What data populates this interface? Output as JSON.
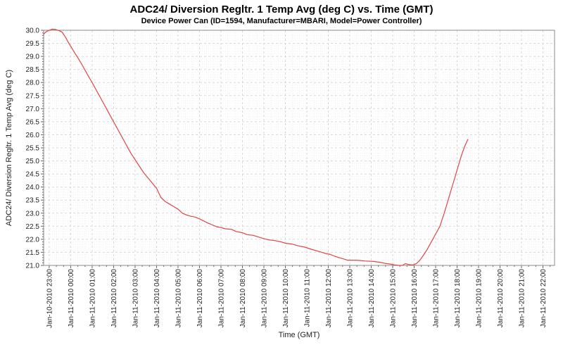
{
  "chart_data": {
    "type": "line",
    "title": "ADC24/ Diversion Regltr. 1 Temp Avg (deg C) vs. Time (GMT)",
    "subtitle": "Device Power Can (ID=1594, Manufacturer=MBARI, Model=Power Controller)",
    "xlabel": "Time (GMT)",
    "ylabel": "ADC24/ Diversion Regltr. 1 Temp Avg (deg C)",
    "legend_position": "none",
    "grid": {
      "major": true,
      "minor": true,
      "style": "dashed"
    },
    "ylim": [
      21.0,
      30.0
    ],
    "y_tick_step": 0.5,
    "xlim_hours": [
      -0.26,
      23.54
    ],
    "x_tick_labels": [
      "Jan-10-2010 23:00",
      "Jan-11-2010 00:00",
      "Jan-11-2010 01:00",
      "Jan-11-2010 02:00",
      "Jan-11-2010 03:00",
      "Jan-11-2010 04:00",
      "Jan-11-2010 05:00",
      "Jan-11-2010 06:00",
      "Jan-11-2010 07:00",
      "Jan-11-2010 08:00",
      "Jan-11-2010 09:00",
      "Jan-11-2010 10:00",
      "Jan-11-2010 11:00",
      "Jan-11-2010 12:00",
      "Jan-11-2010 13:00",
      "Jan-11-2010 14:00",
      "Jan-11-2010 15:00",
      "Jan-11-2010 16:00",
      "Jan-11-2010 17:00",
      "Jan-11-2010 18:00",
      "Jan-11-2010 19:00",
      "Jan-11-2010 20:00",
      "Jan-11-2010 21:00",
      "Jan-11-2010 22:00"
    ],
    "colors": {
      "line": "#e04545",
      "grid_major": "#d8d8d8",
      "grid_minor": "#efefef",
      "border": "#888888",
      "tick": "#666666",
      "tick_text": "#222222"
    },
    "series": [
      {
        "name": "ADC24/ Diversion Regltr. 1 Temp Avg (deg C)",
        "x_unit": "hours after Jan-10-2010 23:00 GMT",
        "points": [
          [
            -0.26,
            29.85
          ],
          [
            -0.15,
            29.94
          ],
          [
            0.0,
            30.0
          ],
          [
            0.15,
            30.04
          ],
          [
            0.3,
            30.03
          ],
          [
            0.45,
            29.99
          ],
          [
            0.6,
            29.93
          ],
          [
            0.75,
            29.75
          ],
          [
            0.9,
            29.52
          ],
          [
            1.05,
            29.32
          ],
          [
            1.2,
            29.12
          ],
          [
            1.35,
            28.93
          ],
          [
            1.5,
            28.72
          ],
          [
            1.65,
            28.5
          ],
          [
            1.8,
            28.28
          ],
          [
            2.0,
            28.0
          ],
          [
            2.2,
            27.7
          ],
          [
            2.4,
            27.4
          ],
          [
            2.6,
            27.1
          ],
          [
            2.8,
            26.8
          ],
          [
            3.0,
            26.5
          ],
          [
            3.2,
            26.2
          ],
          [
            3.4,
            25.9
          ],
          [
            3.6,
            25.6
          ],
          [
            3.8,
            25.3
          ],
          [
            4.0,
            25.05
          ],
          [
            4.2,
            24.8
          ],
          [
            4.4,
            24.55
          ],
          [
            4.6,
            24.35
          ],
          [
            4.8,
            24.15
          ],
          [
            5.0,
            23.95
          ],
          [
            5.2,
            23.6
          ],
          [
            5.4,
            23.45
          ],
          [
            5.6,
            23.35
          ],
          [
            5.8,
            23.25
          ],
          [
            6.0,
            23.15
          ],
          [
            6.2,
            23.0
          ],
          [
            6.4,
            22.93
          ],
          [
            6.6,
            22.88
          ],
          [
            6.8,
            22.85
          ],
          [
            7.0,
            22.78
          ],
          [
            7.2,
            22.7
          ],
          [
            7.4,
            22.62
          ],
          [
            7.6,
            22.55
          ],
          [
            7.8,
            22.48
          ],
          [
            8.0,
            22.45
          ],
          [
            8.2,
            22.4
          ],
          [
            8.5,
            22.38
          ],
          [
            8.7,
            22.3
          ],
          [
            9.0,
            22.25
          ],
          [
            9.2,
            22.18
          ],
          [
            9.5,
            22.15
          ],
          [
            9.7,
            22.1
          ],
          [
            10.0,
            22.02
          ],
          [
            10.2,
            21.98
          ],
          [
            10.5,
            21.95
          ],
          [
            10.8,
            21.9
          ],
          [
            11.0,
            21.85
          ],
          [
            11.3,
            21.82
          ],
          [
            11.6,
            21.75
          ],
          [
            11.9,
            21.7
          ],
          [
            12.2,
            21.62
          ],
          [
            12.5,
            21.55
          ],
          [
            12.7,
            21.5
          ],
          [
            12.9,
            21.45
          ],
          [
            13.1,
            21.42
          ],
          [
            13.3,
            21.35
          ],
          [
            13.5,
            21.3
          ],
          [
            13.7,
            21.25
          ],
          [
            13.9,
            21.2
          ],
          [
            14.3,
            21.2
          ],
          [
            14.7,
            21.17
          ],
          [
            15.1,
            21.15
          ],
          [
            15.4,
            21.12
          ],
          [
            15.7,
            21.07
          ],
          [
            15.9,
            21.05
          ],
          [
            16.1,
            21.02
          ],
          [
            16.3,
            21.0
          ],
          [
            16.45,
            21.0
          ],
          [
            16.6,
            21.07
          ],
          [
            16.75,
            21.03
          ],
          [
            16.95,
            21.02
          ],
          [
            17.1,
            21.07
          ],
          [
            17.25,
            21.18
          ],
          [
            17.4,
            21.35
          ],
          [
            17.6,
            21.6
          ],
          [
            17.8,
            21.9
          ],
          [
            18.0,
            22.2
          ],
          [
            18.2,
            22.5
          ],
          [
            18.4,
            23.0
          ],
          [
            18.6,
            23.55
          ],
          [
            18.8,
            24.1
          ],
          [
            19.0,
            24.65
          ],
          [
            19.2,
            25.2
          ],
          [
            19.35,
            25.55
          ],
          [
            19.5,
            25.82
          ]
        ]
      }
    ]
  }
}
